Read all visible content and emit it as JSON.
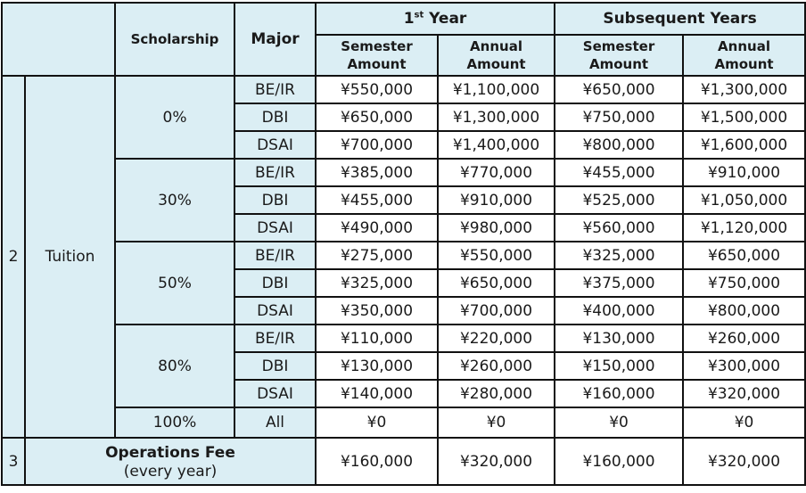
{
  "header": {
    "scholarship": "Scholarship",
    "major": "Major",
    "first_year_num": "1",
    "first_year_sup": "st",
    "first_year_word": " Year",
    "subsequent": "Subsequent Years",
    "semester_amount": "Semester\nAmount",
    "annual_amount": "Annual\nAmount"
  },
  "sections": {
    "tuition_num": "2",
    "tuition_label": "Tuition",
    "ops_num": "3",
    "ops_label": "Operations Fee",
    "ops_sub": "(every year)",
    "ops_values": [
      "¥160,000",
      "¥320,000",
      "¥160,000",
      "¥320,000"
    ]
  },
  "groups": [
    {
      "scholarship": "0%",
      "rows": [
        {
          "major": "BE/IR",
          "v": [
            "¥550,000",
            "¥1,100,000",
            "¥650,000",
            "¥1,300,000"
          ]
        },
        {
          "major": "DBI",
          "v": [
            "¥650,000",
            "¥1,300,000",
            "¥750,000",
            "¥1,500,000"
          ]
        },
        {
          "major": "DSAI",
          "v": [
            "¥700,000",
            "¥1,400,000",
            "¥800,000",
            "¥1,600,000"
          ]
        }
      ]
    },
    {
      "scholarship": "30%",
      "rows": [
        {
          "major": "BE/IR",
          "v": [
            "¥385,000",
            "¥770,000",
            "¥455,000",
            "¥910,000"
          ]
        },
        {
          "major": "DBI",
          "v": [
            "¥455,000",
            "¥910,000",
            "¥525,000",
            "¥1,050,000"
          ]
        },
        {
          "major": "DSAI",
          "v": [
            "¥490,000",
            "¥980,000",
            "¥560,000",
            "¥1,120,000"
          ]
        }
      ]
    },
    {
      "scholarship": "50%",
      "rows": [
        {
          "major": "BE/IR",
          "v": [
            "¥275,000",
            "¥550,000",
            "¥325,000",
            "¥650,000"
          ]
        },
        {
          "major": "DBI",
          "v": [
            "¥325,000",
            "¥650,000",
            "¥375,000",
            "¥750,000"
          ]
        },
        {
          "major": "DSAI",
          "v": [
            "¥350,000",
            "¥700,000",
            "¥400,000",
            "¥800,000"
          ]
        }
      ]
    },
    {
      "scholarship": "80%",
      "rows": [
        {
          "major": "BE/IR",
          "v": [
            "¥110,000",
            "¥220,000",
            "¥130,000",
            "¥260,000"
          ]
        },
        {
          "major": "DBI",
          "v": [
            "¥130,000",
            "¥260,000",
            "¥150,000",
            "¥300,000"
          ]
        },
        {
          "major": "DSAI",
          "v": [
            "¥140,000",
            "¥280,000",
            "¥160,000",
            "¥320,000"
          ]
        }
      ]
    },
    {
      "scholarship": "100%",
      "rows": [
        {
          "major": "All",
          "v": [
            "¥0",
            "¥0",
            "¥0",
            "¥0"
          ]
        }
      ]
    }
  ],
  "colors": {
    "header_bg": "#dbeef4",
    "border": "#111111"
  }
}
